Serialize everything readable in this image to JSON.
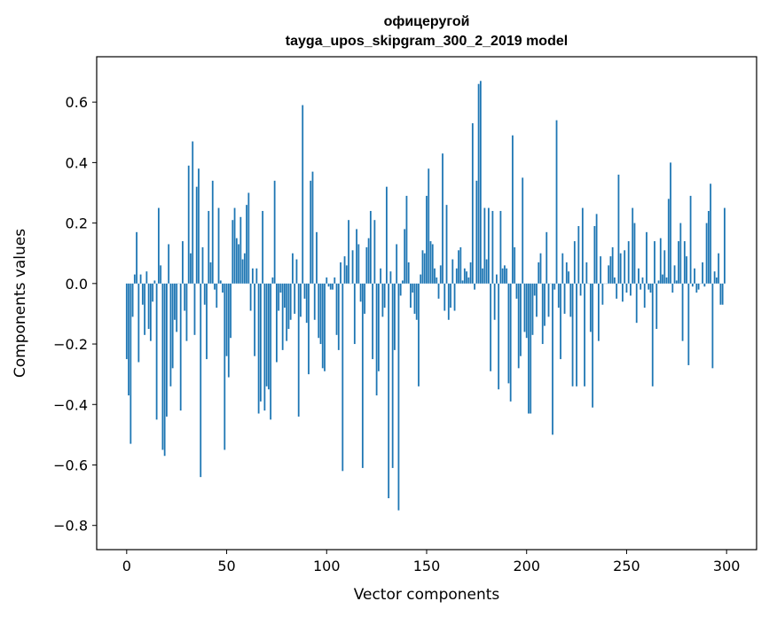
{
  "chart_data": {
    "type": "bar",
    "title_line1": "офицеругой",
    "title_line2": "tayga_upos_skipgram_300_2_2019 model",
    "xlabel": "Vector components",
    "ylabel": "Components values",
    "xlim": [
      -15,
      315
    ],
    "ylim": [
      -0.88,
      0.75
    ],
    "xticks": [
      0,
      50,
      100,
      150,
      200,
      250,
      300
    ],
    "xtick_labels": [
      "0",
      "50",
      "100",
      "150",
      "200",
      "250",
      "300"
    ],
    "yticks": [
      0.6,
      0.4,
      0.2,
      0.0,
      -0.2,
      -0.4,
      -0.6,
      -0.8
    ],
    "ytick_labels": [
      "0.6",
      "0.4",
      "0.2",
      "0.0",
      "−0.2",
      "−0.4",
      "−0.6",
      "−0.8"
    ],
    "bar_color": "#1f77b4",
    "values": [
      -0.25,
      -0.37,
      -0.53,
      -0.11,
      0.03,
      0.17,
      -0.26,
      0.03,
      -0.07,
      -0.17,
      0.04,
      -0.15,
      -0.19,
      -0.06,
      0.01,
      -0.45,
      0.25,
      0.06,
      -0.55,
      -0.57,
      -0.44,
      0.13,
      -0.34,
      -0.28,
      -0.12,
      -0.16,
      0.0,
      -0.42,
      0.14,
      -0.09,
      -0.19,
      0.39,
      0.1,
      0.47,
      -0.17,
      0.32,
      0.38,
      -0.64,
      0.12,
      -0.07,
      -0.25,
      0.24,
      0.07,
      0.34,
      -0.02,
      -0.08,
      0.25,
      0.01,
      -0.03,
      -0.55,
      -0.24,
      -0.31,
      -0.18,
      0.21,
      0.25,
      0.15,
      0.13,
      0.22,
      0.08,
      0.1,
      0.26,
      0.3,
      -0.09,
      0.05,
      -0.24,
      0.05,
      -0.43,
      -0.39,
      0.24,
      -0.42,
      -0.34,
      -0.35,
      -0.45,
      0.02,
      0.34,
      -0.26,
      -0.09,
      -0.03,
      -0.22,
      -0.08,
      -0.19,
      -0.15,
      -0.12,
      0.1,
      -0.1,
      0.08,
      -0.44,
      -0.11,
      0.59,
      -0.05,
      -0.13,
      -0.3,
      0.34,
      0.37,
      -0.12,
      0.17,
      -0.18,
      -0.2,
      -0.28,
      -0.29,
      0.02,
      -0.01,
      -0.02,
      -0.02,
      0.02,
      -0.17,
      -0.22,
      0.07,
      -0.62,
      0.09,
      0.06,
      0.21,
      0.0,
      0.11,
      -0.2,
      0.18,
      0.13,
      -0.06,
      -0.61,
      -0.1,
      0.12,
      0.15,
      0.24,
      -0.25,
      0.21,
      -0.37,
      -0.29,
      0.05,
      -0.11,
      -0.08,
      0.32,
      -0.71,
      0.04,
      -0.61,
      -0.22,
      0.13,
      -0.75,
      -0.04,
      0.01,
      0.18,
      0.29,
      0.07,
      -0.08,
      -0.03,
      -0.1,
      -0.12,
      -0.34,
      0.03,
      0.11,
      0.1,
      0.29,
      0.38,
      0.14,
      0.13,
      0.05,
      0.02,
      -0.05,
      0.06,
      0.43,
      -0.09,
      0.26,
      -0.12,
      -0.08,
      0.08,
      -0.09,
      0.05,
      0.11,
      0.12,
      0.01,
      0.05,
      0.04,
      0.02,
      0.07,
      0.53,
      -0.02,
      0.34,
      0.66,
      0.67,
      0.05,
      0.25,
      0.08,
      0.25,
      -0.29,
      0.24,
      -0.12,
      0.03,
      -0.35,
      0.24,
      0.05,
      0.06,
      0.05,
      -0.33,
      -0.39,
      0.49,
      0.12,
      -0.05,
      -0.28,
      -0.24,
      0.35,
      -0.16,
      -0.18,
      -0.43,
      -0.43,
      -0.17,
      -0.04,
      -0.11,
      0.07,
      0.1,
      -0.2,
      -0.14,
      0.17,
      -0.11,
      0.0,
      -0.5,
      -0.02,
      0.54,
      -0.08,
      -0.25,
      0.1,
      -0.1,
      0.07,
      0.04,
      -0.11,
      -0.34,
      0.14,
      -0.34,
      0.19,
      -0.04,
      0.25,
      -0.34,
      0.07,
      0.0,
      -0.16,
      -0.41,
      0.19,
      0.23,
      -0.19,
      0.09,
      -0.07,
      0.0,
      0.0,
      0.06,
      0.09,
      0.12,
      0.02,
      -0.05,
      0.36,
      0.1,
      -0.06,
      0.11,
      -0.03,
      0.14,
      -0.04,
      0.25,
      0.2,
      -0.13,
      0.05,
      -0.02,
      0.02,
      -0.08,
      0.17,
      -0.02,
      -0.03,
      -0.34,
      0.14,
      -0.15,
      0.01,
      0.15,
      0.03,
      0.11,
      0.02,
      0.28,
      0.4,
      -0.03,
      0.06,
      0.01,
      0.14,
      0.2,
      -0.19,
      0.14,
      0.09,
      -0.27,
      0.29,
      -0.01,
      0.05,
      -0.03,
      -0.02,
      0.0,
      0.07,
      -0.01,
      0.2,
      0.24,
      0.33,
      -0.28,
      0.04,
      0.02,
      0.1,
      -0.07,
      -0.07,
      0.25
    ]
  }
}
